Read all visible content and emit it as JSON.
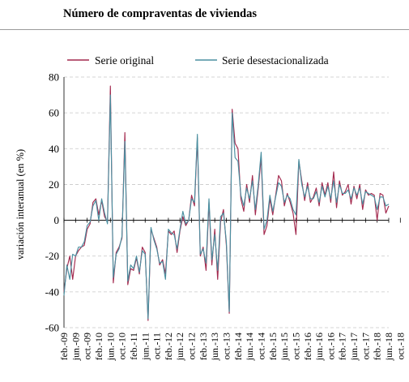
{
  "chart_data": {
    "type": "line",
    "title": "Número de compraventas de viviendas",
    "ylabel": "variación interanual (en %)",
    "xlabel": "",
    "ylim": [
      -60,
      80
    ],
    "yticks": [
      -60,
      -40,
      -20,
      0,
      20,
      40,
      60,
      80
    ],
    "grid": true,
    "legend_position": "top",
    "x_tick_labels": [
      "feb.-09",
      "jun.-09",
      "oct.-09",
      "feb.-10",
      "jun.-10",
      "oct.-10",
      "feb.-11",
      "jun.-11",
      "oct.-11",
      "feb.-12",
      "jun.-12",
      "oct.-12",
      "feb.-13",
      "jun.-13",
      "oct.-13",
      "feb.-14",
      "jun.-14",
      "oct.-14",
      "feb.-15",
      "jun.-15",
      "oct.-15",
      "feb.-16",
      "jun.-16",
      "oct.-16",
      "feb.-17",
      "jun.-17",
      "oct.-17",
      "feb.-18",
      "jun.-18",
      "oct.-18"
    ],
    "x_start": "2009-02",
    "x_end": "2018-10",
    "series": [
      {
        "name": "Serie original",
        "color": "#a3294e",
        "values": [
          -40,
          -27,
          -20,
          -33,
          -20,
          -17,
          -15,
          -14,
          -5,
          -2,
          10,
          12,
          3,
          11,
          2,
          -1,
          75,
          -35,
          -18,
          -15,
          -10,
          49,
          -36,
          -27,
          -28,
          -21,
          -30,
          -15,
          -18,
          -56,
          -5,
          -10,
          -15,
          -25,
          -22,
          -30,
          -6,
          -8,
          -6,
          -18,
          -6,
          2,
          -3,
          0,
          14,
          8,
          46,
          -20,
          -15,
          -28,
          10,
          -25,
          -5,
          -33,
          -1,
          6,
          -14,
          -52,
          62,
          43,
          40,
          12,
          5,
          20,
          10,
          25,
          3,
          18,
          35,
          -8,
          -3,
          12,
          3,
          14,
          25,
          22,
          8,
          15,
          10,
          4,
          -8,
          33,
          22,
          11,
          21,
          10,
          13,
          18,
          8,
          21,
          14,
          21,
          10,
          27,
          7,
          22,
          14,
          16,
          20,
          9,
          19,
          12,
          20,
          6,
          17,
          14,
          15,
          14,
          0,
          15,
          14,
          4,
          8
        ]
      },
      {
        "name": "Serie desestacionalizada",
        "color": "#4a8fa0",
        "values": [
          -42,
          -25,
          -33,
          -19,
          -20,
          -15,
          -15,
          -12,
          -3,
          -1,
          8,
          11,
          0,
          12,
          4,
          -2,
          70,
          -32,
          -19,
          -16,
          -9,
          44,
          -34,
          -25,
          -27,
          -20,
          -29,
          -17,
          -19,
          -55,
          -4,
          -11,
          -16,
          -24,
          -23,
          -33,
          -5,
          -7,
          -8,
          -16,
          -5,
          5,
          -2,
          0,
          12,
          10,
          48,
          -19,
          -16,
          -24,
          12,
          -22,
          -8,
          -28,
          2,
          4,
          -12,
          -51,
          60,
          35,
          33,
          14,
          8,
          18,
          12,
          22,
          6,
          20,
          38,
          -5,
          0,
          14,
          5,
          13,
          21,
          19,
          10,
          14,
          12,
          6,
          3,
          34,
          20,
          13,
          19,
          12,
          12,
          16,
          10,
          19,
          13,
          19,
          12,
          22,
          10,
          20,
          15,
          15,
          17,
          12,
          18,
          14,
          18,
          9,
          16,
          15,
          14,
          13,
          6,
          13,
          13,
          8,
          9
        ]
      }
    ]
  }
}
